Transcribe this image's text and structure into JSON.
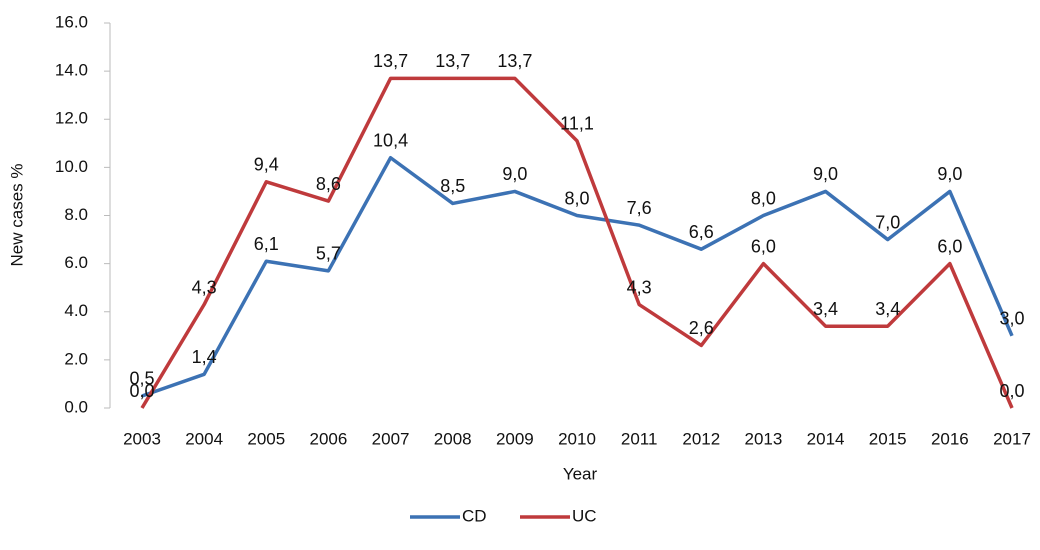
{
  "chart_data": {
    "type": "line",
    "x_label": "Year",
    "y_label": "New cases %",
    "categories": [
      "2003",
      "2004",
      "2005",
      "2006",
      "2007",
      "2008",
      "2009",
      "2010",
      "2011",
      "2012",
      "2013",
      "2014",
      "2015",
      "2016",
      "2017"
    ],
    "series": [
      {
        "name": "CD",
        "color": "#3c72b4",
        "label_color": "#3d8cc6",
        "values": [
          0.5,
          1.4,
          6.1,
          5.7,
          10.4,
          8.5,
          9.0,
          8.0,
          7.6,
          6.6,
          8.0,
          9.0,
          7.0,
          9.0,
          3.0
        ],
        "value_labels": [
          "0,5",
          "1,4",
          "6,1",
          "5,7",
          "10,4",
          "8,5",
          "9,0",
          "8,0",
          "7,6",
          "6,6",
          "8,0",
          "9,0",
          "7,0",
          "9,0",
          "3,0"
        ]
      },
      {
        "name": "UC",
        "color": "#bf3a3c",
        "label_color": "#e0282e",
        "values": [
          0.0,
          4.3,
          9.4,
          8.6,
          13.7,
          13.7,
          13.7,
          11.1,
          4.3,
          2.6,
          6.0,
          3.4,
          3.4,
          6.0,
          0.0
        ],
        "value_labels": [
          "0,0",
          "4,3",
          "9,4",
          "8,6",
          "13,7",
          "13,7",
          "13,7",
          "11,1",
          "4,3",
          "2,6",
          "6,0",
          "3,4",
          "3,4",
          "6,0",
          "0,0"
        ]
      }
    ],
    "ylim": [
      0,
      16
    ],
    "yticks": [
      {
        "value": 0,
        "label": "0.0"
      },
      {
        "value": 2,
        "label": "2.0"
      },
      {
        "value": 4,
        "label": "4.0"
      },
      {
        "value": 6,
        "label": "6.0"
      },
      {
        "value": 8,
        "label": "8.0"
      },
      {
        "value": 10,
        "label": "10.0"
      },
      {
        "value": 12,
        "label": "12.0"
      },
      {
        "value": 14,
        "label": "14.0"
      },
      {
        "value": 16,
        "label": "16.0"
      }
    ],
    "legend": "bottom"
  }
}
